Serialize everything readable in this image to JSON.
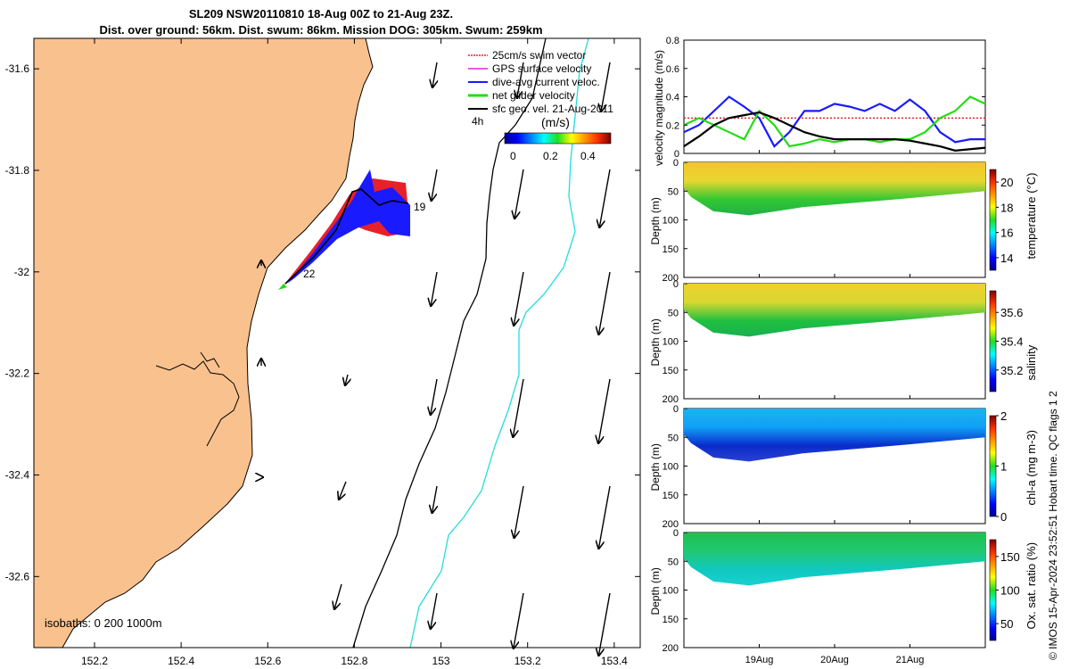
{
  "figure": {
    "title_line1": "SL209 NSW20110810 18-Aug 00Z to 21-Aug 23Z.",
    "title_line2": "Dist. over ground: 56km. Dist. swum: 86km. Mission DOG: 305km. Swum: 259km",
    "credit": "© IMOS 15-Apr-2024 23:52:51 Hobart time. QC flags 1 2"
  },
  "colors": {
    "land": "#f9c18e",
    "swim_vector": "#e8202a",
    "gps_surface_velocity": "#e020e0",
    "dive_avg_current": "#1a1aff",
    "net_glider_velocity": "#22dd11",
    "sfc_geo_vel": "#000000",
    "isobath_200": "#000000",
    "isobath_1000": "#22dddd"
  },
  "map": {
    "legend": [
      {
        "label": "25cm/s swim vector",
        "color": "#e8202a"
      },
      {
        "label": "GPS surface velocity",
        "color": "#e020e0"
      },
      {
        "label": "dive-avg current veloc.",
        "color": "#1a1aff"
      },
      {
        "label": "net glider velocity",
        "color": "#22dd11"
      },
      {
        "label": "sfc geo. vel. 21-Aug-2011",
        "color": "#000000"
      }
    ],
    "colorbar": {
      "unit": "(m/s)",
      "ticks": [
        "0",
        "0.2",
        "0.4"
      ],
      "interval_label": "4h"
    },
    "isobaths_label": "isobaths: 0   200  1000m",
    "point_labels": [
      "19",
      "22"
    ],
    "x_ticks": [
      "152.2",
      "152.4",
      "152.6",
      "152.8",
      "153",
      "153.2",
      "153.4"
    ],
    "y_ticks": [
      "-31.6",
      "-31.8",
      "-32",
      "-32.2",
      "-32.4",
      "-32.6"
    ],
    "xlim": [
      152.06,
      153.46
    ],
    "ylim": [
      -32.74,
      -31.54
    ]
  },
  "chart_data": [
    {
      "type": "line",
      "ylabel": "velocity magnitude (m/s)",
      "ylim": [
        0,
        0.8
      ],
      "y_ticks": [
        "0",
        "0.2",
        "0.4",
        "0.6",
        "0.8"
      ],
      "xlim": [
        18.0,
        22.0
      ],
      "series": [
        {
          "color": "#e8202a",
          "style": "dotted",
          "x": [
            18.0,
            22.0
          ],
          "y": [
            0.25,
            0.25
          ]
        },
        {
          "color": "#1a1aff",
          "x": [
            18.0,
            18.2,
            18.4,
            18.6,
            18.8,
            19.0,
            19.2,
            19.4,
            19.6,
            19.8,
            20.0,
            20.2,
            20.4,
            20.6,
            20.8,
            21.0,
            21.2,
            21.4,
            21.6,
            21.8,
            22.0
          ],
          "y": [
            0.15,
            0.2,
            0.3,
            0.4,
            0.33,
            0.25,
            0.05,
            0.15,
            0.3,
            0.3,
            0.35,
            0.33,
            0.3,
            0.35,
            0.3,
            0.38,
            0.3,
            0.15,
            0.08,
            0.1,
            0.1
          ]
        },
        {
          "color": "#22dd11",
          "x": [
            18.0,
            18.2,
            18.4,
            18.6,
            18.8,
            19.0,
            19.2,
            19.4,
            19.6,
            19.8,
            20.0,
            20.2,
            20.4,
            20.6,
            20.8,
            21.0,
            21.2,
            21.4,
            21.6,
            21.8,
            22.0
          ],
          "y": [
            0.2,
            0.25,
            0.2,
            0.15,
            0.1,
            0.3,
            0.2,
            0.05,
            0.07,
            0.1,
            0.08,
            0.1,
            0.1,
            0.08,
            0.1,
            0.1,
            0.15,
            0.25,
            0.3,
            0.4,
            0.35
          ]
        },
        {
          "color": "#000000",
          "x": [
            18.0,
            18.2,
            18.4,
            18.6,
            18.8,
            19.0,
            19.2,
            19.4,
            19.6,
            19.8,
            20.0,
            20.2,
            20.4,
            20.6,
            20.8,
            21.0,
            21.2,
            21.4,
            21.6,
            21.8,
            22.0
          ],
          "y": [
            0.05,
            0.12,
            0.2,
            0.25,
            0.27,
            0.29,
            0.25,
            0.2,
            0.15,
            0.12,
            0.1,
            0.1,
            0.1,
            0.1,
            0.1,
            0.09,
            0.07,
            0.05,
            0.02,
            0.03,
            0.04
          ]
        }
      ]
    },
    {
      "type": "heatmap",
      "ylabel": "Depth (m)",
      "colorbar_label": "temperature (°C)",
      "y_ticks": [
        "0",
        "50",
        "100",
        "150",
        "200"
      ],
      "ylim": [
        0,
        200
      ],
      "colorbar_ticks": [
        "14",
        "16",
        "18",
        "20"
      ],
      "clim": [
        13,
        21
      ]
    },
    {
      "type": "heatmap",
      "ylabel": "Depth (m)",
      "colorbar_label": "salinity",
      "y_ticks": [
        "0",
        "50",
        "100",
        "150",
        "200"
      ],
      "ylim": [
        0,
        200
      ],
      "colorbar_ticks": [
        "35.2",
        "35.4",
        "35.6"
      ],
      "clim": [
        35.05,
        35.75
      ]
    },
    {
      "type": "heatmap",
      "ylabel": "Depth (m)",
      "colorbar_label": "chl-a (mg m-3)",
      "y_ticks": [
        "0",
        "50",
        "100",
        "150",
        "200"
      ],
      "ylim": [
        0,
        200
      ],
      "colorbar_ticks": [
        "0",
        "1",
        "2"
      ],
      "clim": [
        0,
        2
      ]
    },
    {
      "type": "heatmap",
      "ylabel": "Depth (m)",
      "colorbar_label": "Ox. sat. ratio (%)",
      "y_ticks": [
        "0",
        "50",
        "100",
        "150",
        "200"
      ],
      "ylim": [
        0,
        200
      ],
      "colorbar_ticks": [
        "50",
        "100",
        "150"
      ],
      "clim": [
        25,
        175
      ]
    }
  ],
  "time_axis": {
    "ticks": [
      "19Aug",
      "20Aug",
      "21Aug"
    ]
  }
}
